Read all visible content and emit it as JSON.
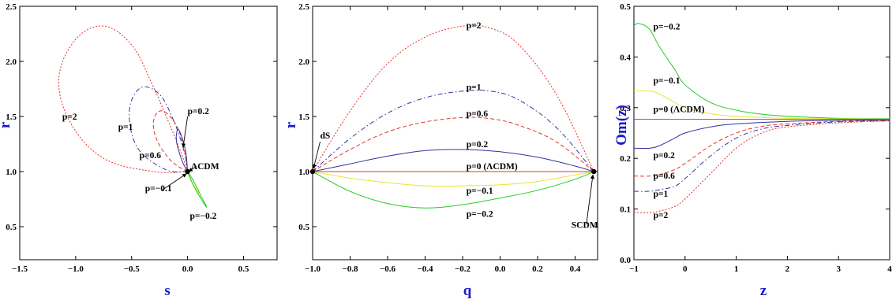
{
  "chart_data": [
    {
      "type": "line",
      "xlabel": "s",
      "ylabel": "r",
      "xlim": [
        -1.5,
        0.8
      ],
      "ylim": [
        0.2,
        2.5
      ],
      "xticks": [
        "-1.5",
        "-1.0",
        "-0.5",
        "0.0",
        "0.5"
      ],
      "yticks": [
        "0.5",
        "1.0",
        "1.5",
        "2.0",
        "2.5"
      ],
      "series": [
        {
          "name": "p=2",
          "color": "#e8302a",
          "dash": "2,2",
          "x": [
            0,
            -0.3,
            -0.75,
            -1.05,
            -1.15,
            -1.0,
            -0.75,
            -0.5,
            -0.32,
            -0.17,
            -0.05,
            0
          ],
          "y": [
            1.0,
            1.0,
            1.12,
            1.45,
            1.85,
            2.2,
            2.32,
            2.15,
            1.8,
            1.45,
            1.15,
            1.0
          ]
        },
        {
          "name": "p=1",
          "color": "#33339e",
          "dash": "6,3,1.5,3",
          "x": [
            0,
            -0.2,
            -0.45,
            -0.52,
            -0.42,
            -0.25,
            -0.12,
            -0.03,
            0
          ],
          "y": [
            1.0,
            1.02,
            1.22,
            1.55,
            1.76,
            1.7,
            1.45,
            1.18,
            1.0
          ]
        },
        {
          "name": "p=0.6",
          "color": "#e8302a",
          "dash": "5,3",
          "x": [
            0,
            -0.15,
            -0.28,
            -0.3,
            -0.22,
            -0.1,
            -0.03,
            0
          ],
          "y": [
            1.0,
            1.1,
            1.3,
            1.48,
            1.55,
            1.42,
            1.2,
            1.0
          ]
        },
        {
          "name": "p=0.2",
          "color": "#33339e",
          "dash": "",
          "x": [
            0,
            -0.05,
            -0.1,
            -0.08,
            -0.02,
            0
          ],
          "y": [
            1.0,
            1.1,
            1.28,
            1.38,
            1.2,
            1.0
          ]
        },
        {
          "name": "p=-0.1",
          "color": "#e6e630",
          "dash": "",
          "x": [
            0,
            0.03,
            0.08,
            0.1,
            0.06,
            0.02,
            0
          ],
          "y": [
            1.0,
            0.92,
            0.84,
            0.8,
            0.86,
            0.94,
            1.0
          ]
        },
        {
          "name": "p=-0.2",
          "color": "#22cc22",
          "dash": "",
          "x": [
            0,
            0.06,
            0.14,
            0.17,
            0.12,
            0.05,
            0
          ],
          "y": [
            1.0,
            0.86,
            0.72,
            0.68,
            0.78,
            0.92,
            1.0
          ]
        }
      ],
      "points": [
        {
          "x": 0,
          "y": 1.0,
          "label": "ΛCDM"
        }
      ],
      "annotations": [
        {
          "text": "p=2",
          "x": -1.12,
          "y": 1.47
        },
        {
          "text": "p=1",
          "x": -0.62,
          "y": 1.38
        },
        {
          "text": "p=0.6",
          "x": -0.43,
          "y": 1.12
        },
        {
          "text": "p=0.2",
          "x": 0.0,
          "y": 1.52
        },
        {
          "text": "ΛCDM",
          "x": 0.03,
          "y": 1.02
        },
        {
          "text": "p=−0.1",
          "x": -0.38,
          "y": 0.82
        },
        {
          "text": "p=−0.2",
          "x": 0.02,
          "y": 0.57
        }
      ]
    },
    {
      "type": "line",
      "xlabel": "q",
      "ylabel": "r",
      "xlim": [
        -1.0,
        0.52
      ],
      "ylim": [
        0.2,
        2.5
      ],
      "xticks": [
        "-1.0",
        "-0.8",
        "-0.6",
        "-0.4",
        "-0.2",
        "0.0",
        "0.2",
        "0.4"
      ],
      "yticks": [
        "0.5",
        "1.0",
        "1.5",
        "2.0",
        "2.5"
      ],
      "series": [
        {
          "name": "p=2",
          "color": "#e8302a",
          "dash": "2,2",
          "x": [
            -1.0,
            -0.8,
            -0.6,
            -0.4,
            -0.2,
            -0.05,
            0.1,
            0.3,
            0.5
          ],
          "y": [
            1.0,
            1.55,
            1.98,
            2.22,
            2.32,
            2.3,
            2.15,
            1.7,
            1.0
          ]
        },
        {
          "name": "p=1",
          "color": "#33339e",
          "dash": "6,3,1.5,3",
          "x": [
            -1.0,
            -0.8,
            -0.6,
            -0.4,
            -0.2,
            -0.05,
            0.1,
            0.3,
            0.5
          ],
          "y": [
            1.0,
            1.3,
            1.53,
            1.67,
            1.73,
            1.73,
            1.65,
            1.4,
            1.0
          ]
        },
        {
          "name": "p=0.6",
          "color": "#e8302a",
          "dash": "5,3",
          "x": [
            -1.0,
            -0.8,
            -0.6,
            -0.4,
            -0.2,
            -0.05,
            0.1,
            0.3,
            0.5
          ],
          "y": [
            1.0,
            1.2,
            1.36,
            1.45,
            1.49,
            1.48,
            1.42,
            1.27,
            1.0
          ]
        },
        {
          "name": "p=0.2",
          "color": "#33339e",
          "dash": "",
          "x": [
            -1.0,
            -0.8,
            -0.6,
            -0.4,
            -0.2,
            0.0,
            0.2,
            0.4,
            0.5
          ],
          "y": [
            1.0,
            1.07,
            1.14,
            1.19,
            1.2,
            1.18,
            1.13,
            1.05,
            1.0
          ]
        },
        {
          "name": "p=0 (ΛCDM)",
          "color": "#e8302a",
          "dash": "",
          "x": [
            -1.0,
            0.5
          ],
          "y": [
            1.0,
            1.0
          ]
        },
        {
          "name": "p=-0.1",
          "color": "#e6e630",
          "dash": "",
          "x": [
            -1.0,
            -0.8,
            -0.6,
            -0.4,
            -0.2,
            0.0,
            0.2,
            0.4,
            0.5
          ],
          "y": [
            1.0,
            0.94,
            0.9,
            0.87,
            0.87,
            0.88,
            0.91,
            0.97,
            1.0
          ]
        },
        {
          "name": "p=-0.2",
          "color": "#22cc22",
          "dash": "",
          "x": [
            -1.0,
            -0.8,
            -0.6,
            -0.4,
            -0.2,
            0.0,
            0.2,
            0.4,
            0.5
          ],
          "y": [
            1.0,
            0.82,
            0.71,
            0.67,
            0.7,
            0.76,
            0.83,
            0.93,
            1.0
          ]
        }
      ],
      "points": [
        {
          "x": -1.0,
          "y": 1.0,
          "label": "dS"
        },
        {
          "x": 0.5,
          "y": 1.0,
          "label": "SCDM"
        }
      ],
      "annotations": [
        {
          "text": "p=2",
          "x": -0.18,
          "y": 2.3
        },
        {
          "text": "p=1",
          "x": -0.18,
          "y": 1.74
        },
        {
          "text": "p=0.6",
          "x": -0.18,
          "y": 1.5
        },
        {
          "text": "p=0.2",
          "x": -0.18,
          "y": 1.22
        },
        {
          "text": "p=0 (ΛCDM)",
          "x": -0.18,
          "y": 1.02
        },
        {
          "text": "p=−0.1",
          "x": -0.18,
          "y": 0.8
        },
        {
          "text": "p=−0.2",
          "x": -0.18,
          "y": 0.59
        },
        {
          "text": "dS",
          "x": -0.96,
          "y": 1.3
        },
        {
          "text": "SCDM",
          "x": 0.38,
          "y": 0.49
        }
      ]
    },
    {
      "type": "line",
      "xlabel": "z",
      "ylabel": "Om(z)",
      "xlim": [
        -1,
        4
      ],
      "ylim": [
        0.0,
        0.5
      ],
      "xticks": [
        "-1",
        "0",
        "1",
        "2",
        "3",
        "4"
      ],
      "yticks": [
        "0.0",
        "0.1",
        "0.2",
        "0.3",
        "0.4",
        "0.5"
      ],
      "series": [
        {
          "name": "p=-0.2",
          "color": "#22cc22",
          "dash": "",
          "x": [
            -1,
            -0.9,
            -0.7,
            -0.5,
            -0.2,
            0,
            0.5,
            1,
            1.5,
            2,
            3,
            4
          ],
          "y": [
            0.462,
            0.466,
            0.455,
            0.42,
            0.375,
            0.345,
            0.31,
            0.295,
            0.287,
            0.283,
            0.279,
            0.278
          ]
        },
        {
          "name": "p=-0.1",
          "color": "#e6e630",
          "dash": "",
          "x": [
            -1,
            -0.7,
            -0.5,
            -0.2,
            0,
            0.5,
            1,
            2,
            3,
            4
          ],
          "y": [
            0.333,
            0.333,
            0.327,
            0.31,
            0.3,
            0.288,
            0.283,
            0.279,
            0.278,
            0.277
          ]
        },
        {
          "name": "p=0 (ΛCDM)",
          "color": "#e8302a",
          "dash": "",
          "x": [
            -1,
            4
          ],
          "y": [
            0.277,
            0.277
          ]
        },
        {
          "name": "p=0.2",
          "color": "#33339e",
          "dash": "",
          "x": [
            -1,
            -0.7,
            -0.5,
            -0.2,
            0,
            0.5,
            1,
            2,
            3,
            4
          ],
          "y": [
            0.22,
            0.22,
            0.225,
            0.24,
            0.25,
            0.262,
            0.268,
            0.273,
            0.275,
            0.276
          ]
        },
        {
          "name": "p=0.6",
          "color": "#e8302a",
          "dash": "5,3",
          "x": [
            -1,
            -0.7,
            -0.5,
            -0.2,
            0,
            0.5,
            1,
            1.5,
            2,
            3,
            4
          ],
          "y": [
            0.165,
            0.165,
            0.168,
            0.178,
            0.19,
            0.225,
            0.25,
            0.263,
            0.268,
            0.273,
            0.275
          ]
        },
        {
          "name": "p=1",
          "color": "#33339e",
          "dash": "6,3,1.5,3",
          "x": [
            -1,
            -0.7,
            -0.5,
            -0.2,
            0,
            0.5,
            1,
            1.5,
            2,
            3,
            4
          ],
          "y": [
            0.135,
            0.135,
            0.138,
            0.145,
            0.16,
            0.205,
            0.24,
            0.258,
            0.265,
            0.272,
            0.274
          ]
        },
        {
          "name": "p=2",
          "color": "#e8302a",
          "dash": "2,2",
          "x": [
            -1,
            -0.7,
            -0.5,
            -0.2,
            0,
            0.5,
            1,
            1.5,
            2,
            3,
            4
          ],
          "y": [
            0.093,
            0.093,
            0.096,
            0.105,
            0.12,
            0.17,
            0.22,
            0.25,
            0.262,
            0.27,
            0.274
          ]
        }
      ],
      "annotations": [
        {
          "text": "p=−0.2",
          "x": -0.62,
          "y": 0.454
        },
        {
          "text": "p=−0.1",
          "x": -0.62,
          "y": 0.348
        },
        {
          "text": "p=0 (ΛCDM)",
          "x": -0.62,
          "y": 0.291
        },
        {
          "text": "p=0.2",
          "x": -0.62,
          "y": 0.2
        },
        {
          "text": "p=0.6",
          "x": -0.62,
          "y": 0.16
        },
        {
          "text": "p=1",
          "x": -0.62,
          "y": 0.124
        },
        {
          "text": "p=2",
          "x": -0.62,
          "y": 0.082
        }
      ]
    }
  ]
}
